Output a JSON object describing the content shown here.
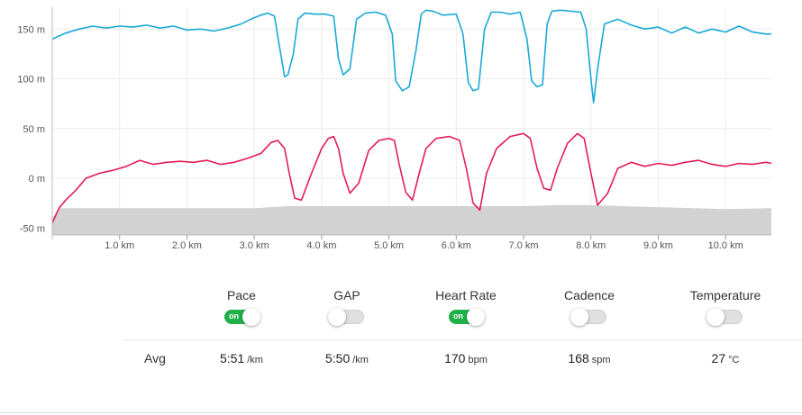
{
  "chart_data": {
    "type": "line",
    "x_unit_label": "km",
    "y_unit_label": "m",
    "xlim": [
      0,
      10.68
    ],
    "ylim": [
      -57,
      172
    ],
    "y_ticks": [
      {
        "value": 150,
        "label": "150 m"
      },
      {
        "value": 100,
        "label": "100 m"
      },
      {
        "value": 50,
        "label": "50 m"
      },
      {
        "value": 0,
        "label": "0 m"
      },
      {
        "value": -50,
        "label": "-50 m"
      }
    ],
    "x_ticks": [
      {
        "value": 1,
        "label": "1.0 km"
      },
      {
        "value": 2,
        "label": "2.0 km"
      },
      {
        "value": 3,
        "label": "3.0 km"
      },
      {
        "value": 4,
        "label": "4.0 km"
      },
      {
        "value": 5,
        "label": "5.0 km"
      },
      {
        "value": 6,
        "label": "6.0 km"
      },
      {
        "value": 7,
        "label": "7.0 km"
      },
      {
        "value": 8,
        "label": "8.0 km"
      },
      {
        "value": 9,
        "label": "9.0 km"
      },
      {
        "value": 10,
        "label": "10.0 km"
      }
    ],
    "grid": true,
    "series": [
      {
        "key": "pace",
        "color": "#1aa9d6",
        "x": [
          0.0,
          0.2,
          0.4,
          0.6,
          0.8,
          1.0,
          1.2,
          1.4,
          1.6,
          1.8,
          2.0,
          2.2,
          2.4,
          2.6,
          2.8,
          2.95,
          3.1,
          3.2,
          3.3,
          3.38,
          3.45,
          3.5,
          3.58,
          3.65,
          3.75,
          3.9,
          4.05,
          4.18,
          4.25,
          4.32,
          4.42,
          4.52,
          4.65,
          4.8,
          4.95,
          5.05,
          5.1,
          5.2,
          5.3,
          5.4,
          5.48,
          5.55,
          5.65,
          5.8,
          6.0,
          6.1,
          6.18,
          6.25,
          6.33,
          6.42,
          6.52,
          6.65,
          6.8,
          6.95,
          7.05,
          7.12,
          7.2,
          7.28,
          7.35,
          7.42,
          7.55,
          7.7,
          7.85,
          7.93,
          8.0,
          8.04,
          8.1,
          8.2,
          8.4,
          8.6,
          8.8,
          9.0,
          9.2,
          9.4,
          9.6,
          9.8,
          10.0,
          10.2,
          10.4,
          10.6,
          10.68
        ],
        "y": [
          140,
          146,
          150,
          153,
          151,
          153,
          152,
          154,
          151,
          153,
          149,
          150,
          148,
          151,
          155,
          160,
          164,
          166,
          163,
          130,
          102,
          104,
          125,
          160,
          166,
          165,
          165,
          163,
          120,
          104,
          110,
          160,
          166,
          167,
          164,
          145,
          98,
          88,
          92,
          128,
          165,
          169,
          168,
          164,
          165,
          145,
          96,
          88,
          90,
          150,
          167,
          167,
          165,
          167,
          140,
          98,
          92,
          94,
          155,
          168,
          169,
          168,
          167,
          150,
          100,
          76,
          110,
          155,
          160,
          154,
          150,
          152,
          146,
          152,
          146,
          150,
          147,
          153,
          147,
          145,
          145
        ]
      },
      {
        "key": "heart_rate",
        "color": "#e31c54",
        "x": [
          0.0,
          0.1,
          0.2,
          0.35,
          0.5,
          0.7,
          0.9,
          1.1,
          1.3,
          1.5,
          1.7,
          1.9,
          2.1,
          2.3,
          2.5,
          2.7,
          2.9,
          3.1,
          3.25,
          3.35,
          3.45,
          3.52,
          3.6,
          3.7,
          3.85,
          4.0,
          4.1,
          4.18,
          4.25,
          4.32,
          4.42,
          4.55,
          4.7,
          4.85,
          5.0,
          5.08,
          5.15,
          5.25,
          5.35,
          5.45,
          5.55,
          5.7,
          5.9,
          6.05,
          6.15,
          6.25,
          6.35,
          6.45,
          6.6,
          6.8,
          7.0,
          7.1,
          7.2,
          7.3,
          7.4,
          7.5,
          7.65,
          7.8,
          7.9,
          8.0,
          8.1,
          8.25,
          8.4,
          8.6,
          8.8,
          9.0,
          9.2,
          9.4,
          9.6,
          9.8,
          10.0,
          10.2,
          10.4,
          10.6,
          10.68
        ],
        "y": [
          -45,
          -30,
          -22,
          -12,
          0,
          5,
          8,
          12,
          18,
          14,
          16,
          17,
          16,
          18,
          14,
          16,
          20,
          25,
          36,
          38,
          30,
          5,
          -20,
          -22,
          5,
          30,
          40,
          42,
          30,
          5,
          -15,
          -5,
          28,
          38,
          40,
          38,
          15,
          -14,
          -22,
          5,
          30,
          40,
          42,
          38,
          10,
          -25,
          -32,
          5,
          30,
          42,
          45,
          40,
          10,
          -10,
          -12,
          10,
          35,
          45,
          40,
          5,
          -27,
          -15,
          10,
          16,
          12,
          15,
          13,
          16,
          18,
          14,
          12,
          15,
          14,
          16,
          15
        ]
      },
      {
        "key": "elevation",
        "color": "#d2d2d2",
        "x": [
          0.0,
          0.1,
          0.3,
          1.0,
          2.0,
          3.0,
          3.5,
          4.0,
          5.0,
          6.0,
          7.0,
          7.5,
          8.0,
          9.0,
          10.0,
          10.68
        ],
        "y": [
          -40,
          -30,
          -30,
          -30,
          -30,
          -30,
          -28,
          -28,
          -28,
          -28,
          -28,
          -27,
          -27,
          -29,
          -31,
          -30
        ]
      }
    ]
  },
  "metrics": [
    {
      "key": "pace",
      "label": "Pace",
      "enabled": true,
      "avg_value": "5:51",
      "avg_unit": "/km"
    },
    {
      "key": "gap",
      "label": "GAP",
      "enabled": false,
      "avg_value": "5:50",
      "avg_unit": "/km"
    },
    {
      "key": "heart_rate",
      "label": "Heart Rate",
      "enabled": true,
      "avg_value": "170",
      "avg_unit": "bpm"
    },
    {
      "key": "cadence",
      "label": "Cadence",
      "enabled": false,
      "avg_value": "168",
      "avg_unit": "spm"
    },
    {
      "key": "temperature",
      "label": "Temperature",
      "enabled": false,
      "avg_value": "27",
      "avg_unit": "°C"
    }
  ],
  "toggle_on_text": "on",
  "avg_label": "Avg"
}
